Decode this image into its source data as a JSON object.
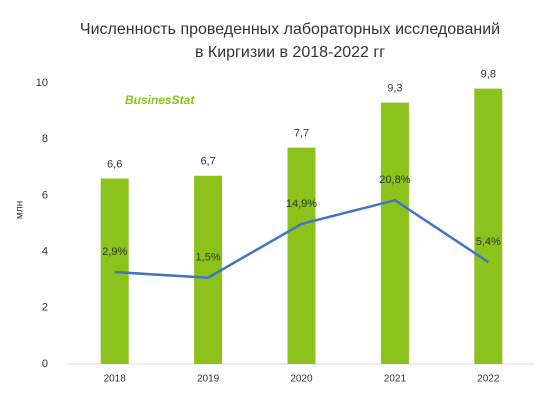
{
  "chart_data": {
    "type": "bar-line",
    "title": [
      "Численность проведенных лабораторных исследований",
      "в Киргизии в 2018-2022 гг"
    ],
    "watermark": "BusinesStat",
    "y_label": "млн",
    "categories": [
      "2018",
      "2019",
      "2020",
      "2021",
      "2022"
    ],
    "series": [
      {
        "type": "bar",
        "color": "#8cc21c",
        "values": [
          6.6,
          6.7,
          7.7,
          9.3,
          9.8
        ],
        "value_labels": [
          "6,6",
          "6,7",
          "7,7",
          "9,3",
          "9,8"
        ]
      },
      {
        "type": "line",
        "axis": "y2",
        "color": "#4472c4",
        "values": [
          2.9,
          1.5,
          14.9,
          20.8,
          5.4
        ],
        "value_labels": [
          "2,9%",
          "1,5%",
          "14,9%",
          "20,8%",
          "5,4%"
        ]
      }
    ],
    "ylim": [
      0,
      10
    ],
    "yticks": [
      0,
      2,
      4,
      6,
      8,
      10
    ],
    "y2lim": [
      -20,
      50
    ]
  }
}
